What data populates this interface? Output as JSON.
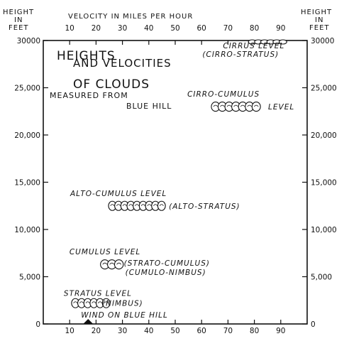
{
  "chart_data": {
    "type": "scatter",
    "title_lines": [
      "HEIGHTS",
      "AND VELOCITIES",
      "OF CLOUDS"
    ],
    "subtitle_lines": [
      "MEASURED FROM",
      "BLUE HILL"
    ],
    "xlabel": "VELOCITY IN MILES PER HOUR",
    "ylabel_left": [
      "HEIGHT",
      "IN",
      "FEET"
    ],
    "ylabel_right": [
      "HEIGHT",
      "IN",
      "FEET"
    ],
    "x_ticks": [
      10,
      20,
      30,
      40,
      50,
      60,
      70,
      80,
      90
    ],
    "y_ticks": [
      {
        "value": 0,
        "label": "0"
      },
      {
        "value": 5000,
        "label": "5,000"
      },
      {
        "value": 10000,
        "label": "10,000"
      },
      {
        "value": 15000,
        "label": "15,000"
      },
      {
        "value": 20000,
        "label": "20,000"
      },
      {
        "value": 25000,
        "label": "25,000"
      },
      {
        "value": 30000,
        "label": "30000"
      }
    ],
    "xlim": [
      0,
      100
    ],
    "ylim": [
      0,
      30000
    ],
    "grid": false,
    "clouds": [
      {
        "name": "cirrus",
        "labels": [
          "CIRRUS LEVEL",
          "(CIRRO-STRATUS)"
        ],
        "x_range": [
          78,
          92
        ],
        "height": 30000
      },
      {
        "name": "cirro-cumulus",
        "labels": [
          "CIRRO-CUMULUS",
          "LEVEL"
        ],
        "x_range": [
          64,
          82
        ],
        "height": 23000
      },
      {
        "name": "alto-cumulus",
        "labels": [
          "ALTO-CUMULUS LEVEL",
          "(ALTO-STRATUS)"
        ],
        "x_range": [
          25,
          46
        ],
        "height": 12500
      },
      {
        "name": "cumulus",
        "labels": [
          "CUMULUS LEVEL",
          "(STRATO-CUMULUS)",
          "(CUMULO-NIMBUS)"
        ],
        "x_range": [
          22,
          30
        ],
        "height": 6300
      },
      {
        "name": "stratus",
        "labels": [
          "STRATUS LEVEL",
          "(NIMBUS)"
        ],
        "x_range": [
          11,
          25
        ],
        "height": 2200
      }
    ],
    "wind_marker": {
      "label": "WIND ON BLUE HILL",
      "x": 17,
      "height": 0
    }
  }
}
